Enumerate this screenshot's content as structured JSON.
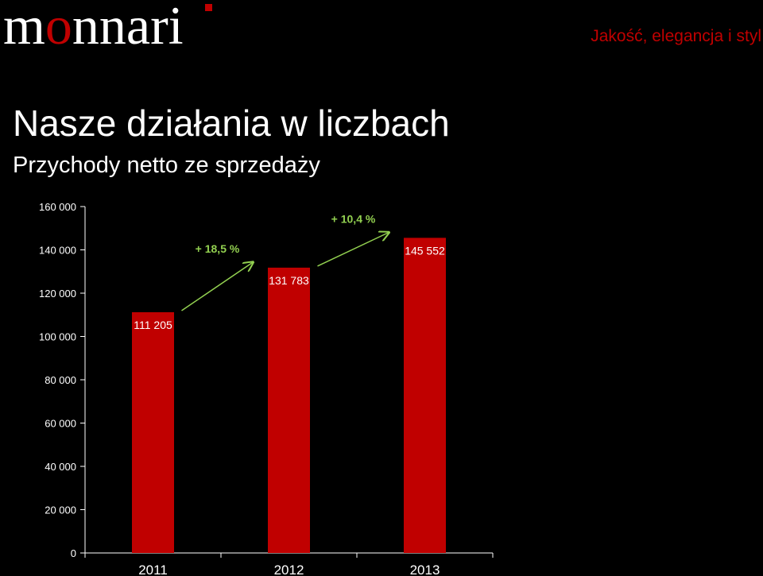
{
  "header": {
    "logo_text": "monnari",
    "tagline": "Jakość, elegancja i styl"
  },
  "slide": {
    "title": "Nasze działania w liczbach",
    "subtitle": "Przychody netto ze sprzedaży"
  },
  "colors": {
    "bar": "#c00000",
    "growth": "#92d050",
    "accent": "#c00000"
  },
  "chart_data": {
    "type": "bar",
    "categories": [
      "2011",
      "2012",
      "2013"
    ],
    "values": [
      111205,
      131783,
      145552
    ],
    "data_labels": [
      "111 205",
      "131 783",
      "145 552"
    ],
    "ylim": [
      0,
      160000
    ],
    "yticks": [
      0,
      20000,
      40000,
      60000,
      80000,
      100000,
      120000,
      140000,
      160000
    ],
    "ytick_labels": [
      "0",
      "20 000",
      "40 000",
      "60 000",
      "80 000",
      "100 000",
      "120 000",
      "140 000",
      "160 000"
    ],
    "grid": false,
    "annotations": [
      {
        "text": "+ 18,5 %",
        "from": "2011",
        "to": "2012"
      },
      {
        "text": "+ 10,4 %",
        "from": "2012",
        "to": "2013"
      }
    ]
  }
}
